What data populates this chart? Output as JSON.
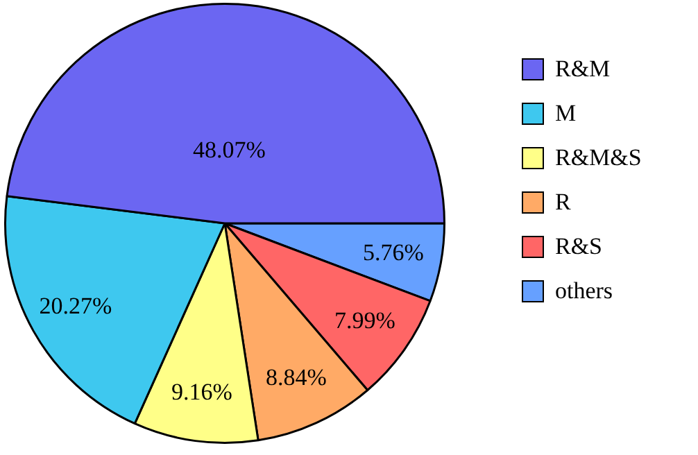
{
  "chart_data": {
    "type": "pie",
    "categories": [
      "R&M",
      "M",
      "R&M&S",
      "R",
      "R&S",
      "others"
    ],
    "values": [
      48.07,
      20.27,
      9.16,
      8.84,
      7.99,
      5.76
    ],
    "colors": [
      "#6b66f2",
      "#3ec8ef",
      "#ffff88",
      "#ffaa66",
      "#ff6666",
      "#66a0ff"
    ],
    "value_labels": [
      "48.07%",
      "20.27%",
      "9.16%",
      "8.84%",
      "7.99%",
      "5.76%"
    ],
    "legend": "right"
  }
}
